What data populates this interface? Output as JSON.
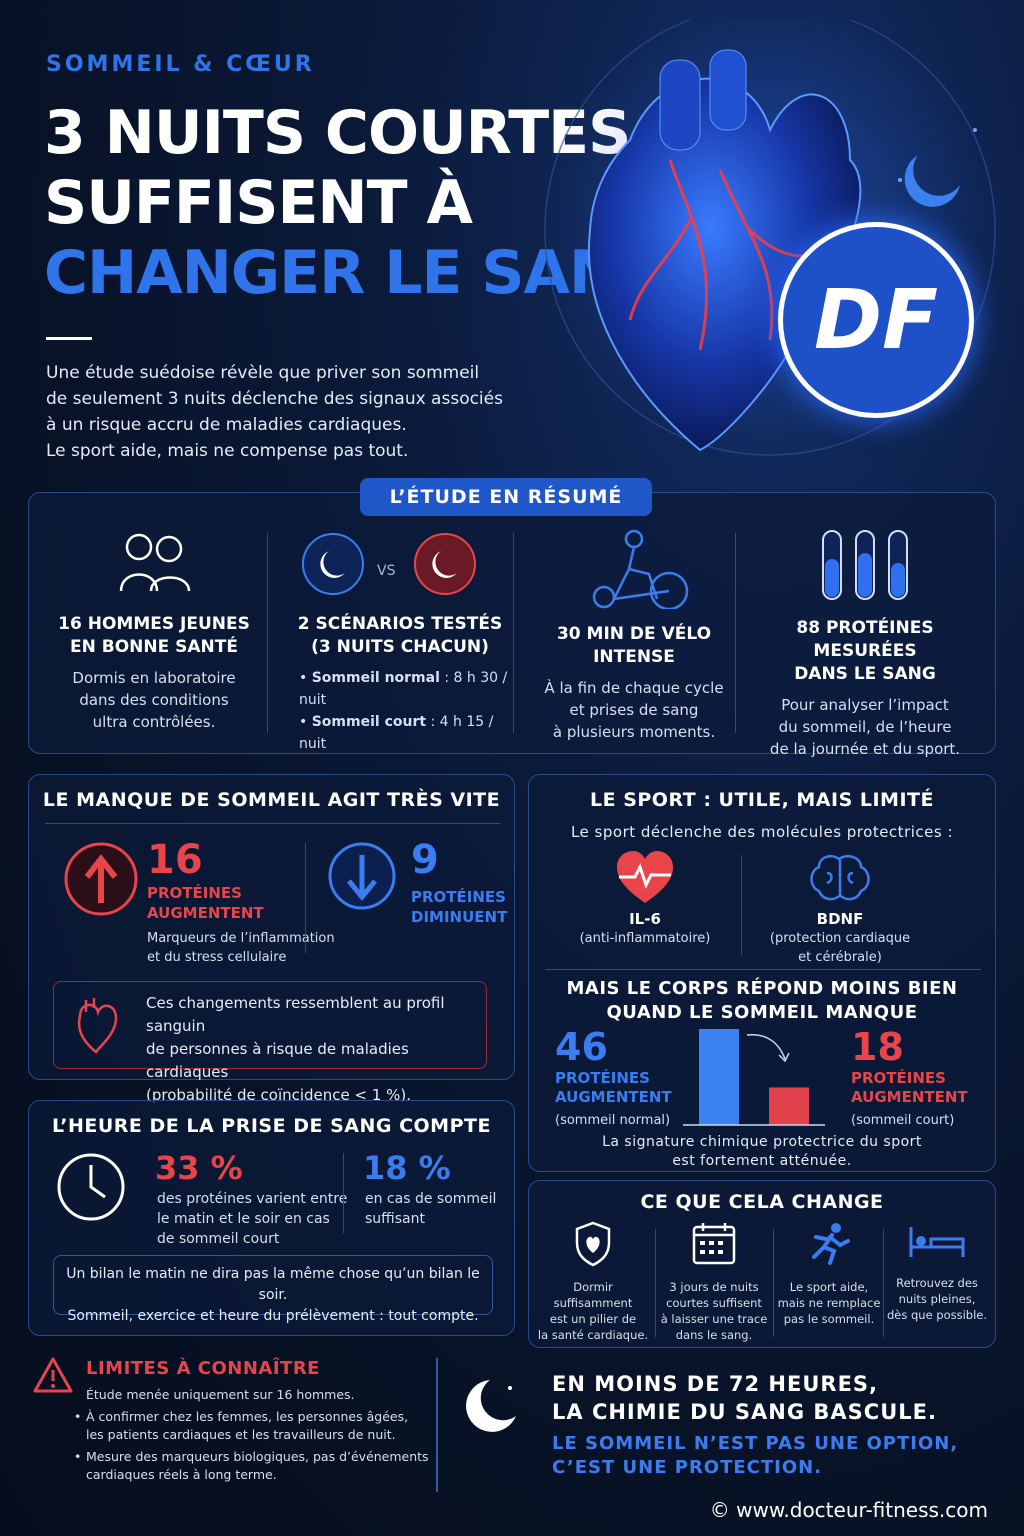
{
  "header": {
    "kicker": "SOMMEIL & CŒUR",
    "title_line1": "3 NUITS COURTES",
    "title_line2": "SUFFISENT À",
    "title_line3": "CHANGER LE SANG",
    "intro": [
      "Une étude suédoise révèle que priver son sommeil",
      "de seulement 3 nuits déclenche des signaux associés",
      "à un risque accru de maladies cardiaques.",
      "Le sport aide, mais ne compense pas tout."
    ],
    "logo": "DF"
  },
  "study": {
    "badge": "L’ÉTUDE EN RÉSUMÉ",
    "vs": "VS",
    "cols": [
      {
        "title1": "16 HOMMES JEUNES",
        "title2": "EN BONNE SANTÉ",
        "desc": [
          "Dormis en laboratoire",
          "dans des conditions",
          "ultra contrôlées."
        ]
      },
      {
        "title1": "2 SCÉNARIOS TESTÉS",
        "title2": "(3 NUITS CHACUN)",
        "b1_label": "Sommeil normal",
        "b1_value": ": 8 h 30 / nuit",
        "b2_label": "Sommeil court",
        "b2_value": ":  4 h 15 / nuit"
      },
      {
        "title1": "30 MIN DE VÉLO",
        "title2": "INTENSE",
        "desc": [
          "À la fin de chaque cycle",
          "et prises de sang",
          "à plusieurs moments."
        ]
      },
      {
        "title1": "88 PROTÉINES MESURÉES",
        "title2": "DANS LE SANG",
        "desc": [
          "Pour analyser l’impact",
          "du sommeil, de l’heure",
          "de la journée et du sport."
        ]
      }
    ]
  },
  "fast": {
    "title": "LE MANQUE DE SOMMEIL AGIT TRÈS VITE",
    "up_num": "16",
    "up_l1": "PROTÉINES",
    "up_l2": "AUGMENTENT",
    "down_num": "9",
    "down_l1": "PROTÉINES",
    "down_l2": "DIMINUENT",
    "markers1": "Marqueurs de l’inflammation",
    "markers2": "et du stress cellulaire",
    "note": [
      "Ces changements ressemblent au profil sanguin",
      "de personnes à risque de maladies cardiaques",
      "(probabilité de coïncidence < 1 %)."
    ]
  },
  "time": {
    "title": "L’HEURE DE LA PRISE DE SANG COMPTE",
    "p1": "33 %",
    "p1_desc": [
      "des protéines varient entre",
      "le matin et le soir en cas",
      "de sommeil court"
    ],
    "p2": "18 %",
    "p2_desc": [
      "en cas de sommeil",
      "suffisant"
    ],
    "note": [
      "Un bilan le matin ne dira pas la même chose qu’un bilan le soir.",
      "Sommeil, exercice et heure du prélèvement : tout compte."
    ]
  },
  "sport": {
    "title": "LE SPORT : UTILE, MAIS LIMITÉ",
    "sub": "Le sport déclenche des molécules protectrices :",
    "m1": "IL-6",
    "m1_desc": "(anti-inflammatoire)",
    "m2": "BDNF",
    "m2_desc1": "(protection cardiaque",
    "m2_desc2": "et cérébrale)",
    "title2a": "MAIS LE CORPS RÉPOND MOINS BIEN",
    "title2b": "QUAND LE SOMMEIL MANQUE",
    "n1": "46",
    "n1_l1": "PROTÉINES",
    "n1_l2": "AUGMENTENT",
    "n1_l3": "(sommeil normal)",
    "n2": "18",
    "n2_l1": "PROTÉINES",
    "n2_l2": "AUGMENTENT",
    "n2_l3": "(sommeil court)",
    "foot1": "La signature chimique protectrice du sport",
    "foot2": "est fortement atténuée."
  },
  "chart_data": {
    "type": "bar",
    "categories": [
      "sommeil normal",
      "sommeil court"
    ],
    "values": [
      46,
      18
    ],
    "colors": [
      "#3b82f0",
      "#e0414a"
    ]
  },
  "change": {
    "title": "CE QUE CELA CHANGE",
    "items": [
      [
        "Dormir suffisamment",
        "est un pilier de",
        "la santé cardiaque."
      ],
      [
        "3 jours de nuits",
        "courtes suffisent",
        "à laisser une trace",
        "dans le sang."
      ],
      [
        "Le sport aide,",
        "mais ne remplace",
        "pas le sommeil."
      ],
      [
        "Retrouvez des",
        "nuits pleines,",
        "dès que possible."
      ]
    ]
  },
  "limits": {
    "title": "LIMITES À CONNAÎTRE",
    "l0": "Étude menée uniquement sur 16 hommes.",
    "b1a": "À confirmer chez les femmes, les personnes âgées,",
    "b1b": "les patients cardiaques et les travailleurs de nuit.",
    "b2a": "Mesure des marqueurs biologiques, pas d’événements",
    "b2b": "cardiaques réels à long terme."
  },
  "outro": {
    "l1": "EN MOINS DE 72 HEURES,",
    "l2": "LA CHIMIE DU SANG BASCULE.",
    "l3": "LE SOMMEIL N’EST PAS UNE OPTION,",
    "l4": "C’EST UNE PROTECTION."
  },
  "footer": {
    "url": "© www.docteur-fitness.com"
  }
}
